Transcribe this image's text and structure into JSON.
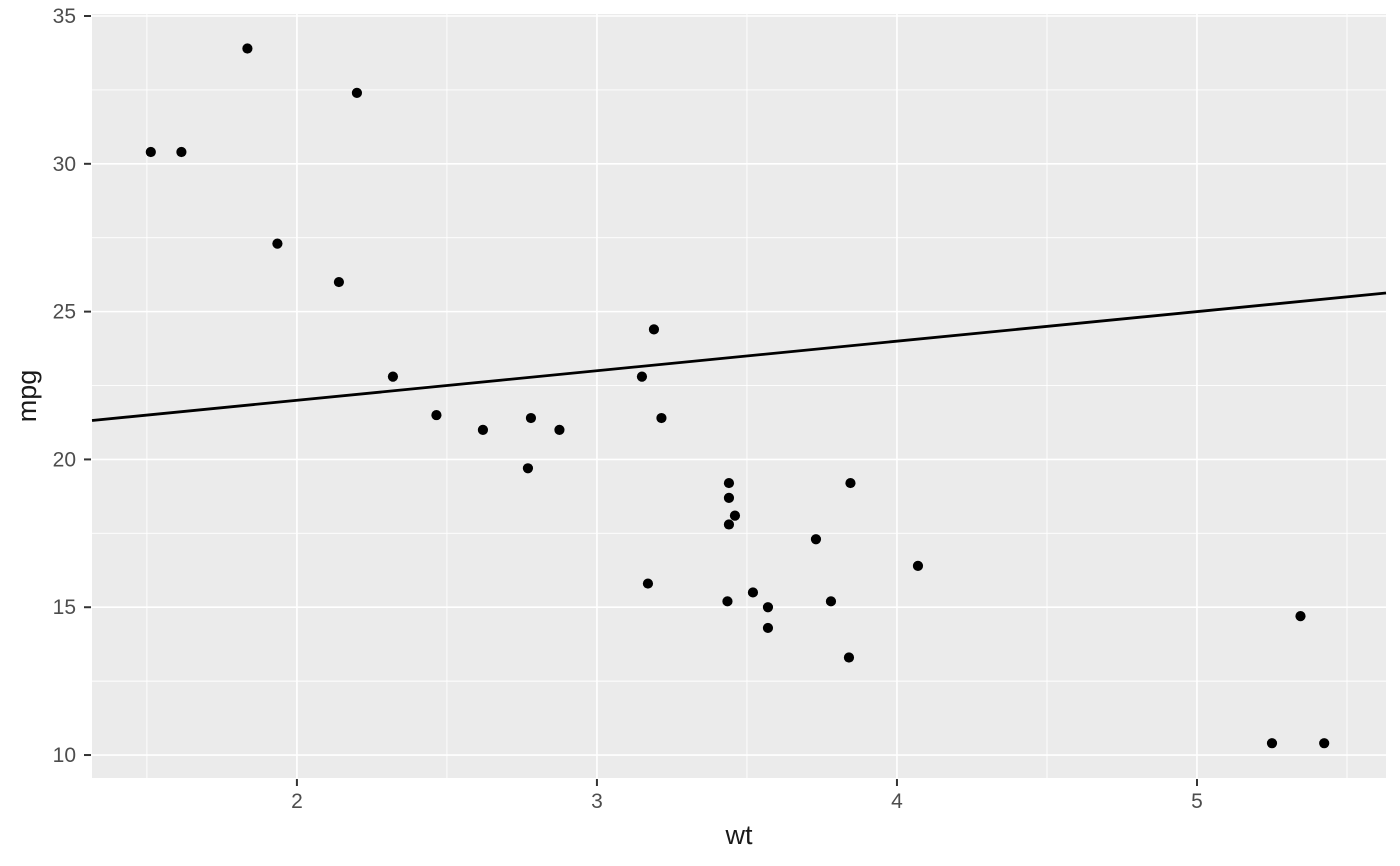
{
  "figure": {
    "background": "#ffffff"
  },
  "chart_data": {
    "type": "scatter",
    "title": "",
    "xlabel": "wt",
    "ylabel": "mpg",
    "xlim": [
      1.317,
      5.63
    ],
    "ylim": [
      9.223,
      35.068
    ],
    "x_ticks": {
      "major": [
        2,
        3,
        4,
        5
      ],
      "minor": [
        1.5,
        2.5,
        3.5,
        4.5,
        5.5
      ]
    },
    "y_ticks": {
      "major": [
        10,
        15,
        20,
        25,
        30,
        35
      ],
      "minor": [
        12.5,
        17.5,
        22.5,
        27.5,
        32.5
      ]
    },
    "grid": "major and minor white gridlines on gray panel",
    "legend": "none",
    "points": [
      [
        2.62,
        21.0
      ],
      [
        2.875,
        21.0
      ],
      [
        2.32,
        22.8
      ],
      [
        3.215,
        21.4
      ],
      [
        3.44,
        18.7
      ],
      [
        3.46,
        18.1
      ],
      [
        3.57,
        14.3
      ],
      [
        3.19,
        24.4
      ],
      [
        3.15,
        22.8
      ],
      [
        3.44,
        19.2
      ],
      [
        3.44,
        17.8
      ],
      [
        4.07,
        16.4
      ],
      [
        3.73,
        17.3
      ],
      [
        3.78,
        15.2
      ],
      [
        5.25,
        10.4
      ],
      [
        5.424,
        10.4
      ],
      [
        5.345,
        14.7
      ],
      [
        2.2,
        32.4
      ],
      [
        1.615,
        30.4
      ],
      [
        1.835,
        33.9
      ],
      [
        2.465,
        21.5
      ],
      [
        3.52,
        15.5
      ],
      [
        3.435,
        15.2
      ],
      [
        3.84,
        13.3
      ],
      [
        3.845,
        19.2
      ],
      [
        1.935,
        27.3
      ],
      [
        2.14,
        26.0
      ],
      [
        1.513,
        30.4
      ],
      [
        3.17,
        15.8
      ],
      [
        2.77,
        19.7
      ],
      [
        3.57,
        15.0
      ],
      [
        2.78,
        21.4
      ]
    ],
    "line": {
      "type": "abline",
      "intercept": 20,
      "slope": 1
    },
    "style": {
      "panel_bg": "#ebebeb",
      "grid_color": "#ffffff",
      "point_color": "#000000",
      "line_color": "#000000",
      "tick_mark_color": "#333333",
      "tick_label_color": "#4d4d4d",
      "axis_title_color": "#1a1a1a"
    }
  }
}
